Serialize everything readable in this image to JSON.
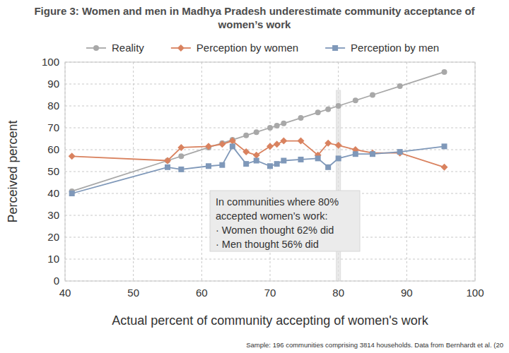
{
  "chart_data": {
    "type": "line",
    "title": "Figure 3: Women and men in Madhya Pradesh underestimate community acceptance of women’s work",
    "x_label": "Actual percent of community accepting of women's work",
    "y_label": "Perceived percent",
    "source": "Sample: 196 communities comprising 3814 households. Data from Bernhardt et al. (20",
    "x": [
      41,
      55,
      57,
      61,
      63,
      64.5,
      66.5,
      68,
      70,
      71,
      72,
      74.5,
      77,
      78.5,
      80,
      82.5,
      85,
      89,
      95.5
    ],
    "series": [
      {
        "name": "Reality",
        "color": "#a8a8a8",
        "marker": "circle",
        "values": [
          41,
          55,
          57,
          61,
          63,
          64.5,
          66.5,
          68,
          70,
          71,
          72,
          74.5,
          77,
          78.5,
          80,
          82.5,
          85,
          89,
          95.5
        ]
      },
      {
        "name": "Perception by women",
        "color": "#d9825f",
        "marker": "diamond",
        "values": [
          57,
          55,
          61,
          61.5,
          62.5,
          64,
          59,
          57.5,
          61.5,
          62.5,
          64,
          64,
          57.5,
          63,
          62,
          60,
          58.5,
          58.5,
          52
        ]
      },
      {
        "name": "Perception by men",
        "color": "#7f98b9",
        "marker": "square",
        "values": [
          40,
          52,
          51,
          52.5,
          53,
          61.5,
          53.5,
          55,
          52.5,
          53.5,
          55,
          55.5,
          56,
          52,
          56,
          58,
          58,
          59,
          61.5
        ]
      }
    ],
    "xlim": [
      40,
      100
    ],
    "xticks": [
      40,
      50,
      60,
      70,
      80,
      90,
      100
    ],
    "ylim": [
      0,
      100
    ],
    "yticks": [
      0,
      10,
      20,
      30,
      40,
      50,
      60,
      70,
      80,
      90,
      100
    ],
    "grid": true,
    "legend": "top",
    "annotation": {
      "x": 80,
      "lines": [
        "In communities where 80%",
        "accepted women’s work:",
        "· Women thought 62% did",
        "· Men thought 56% did"
      ]
    }
  }
}
